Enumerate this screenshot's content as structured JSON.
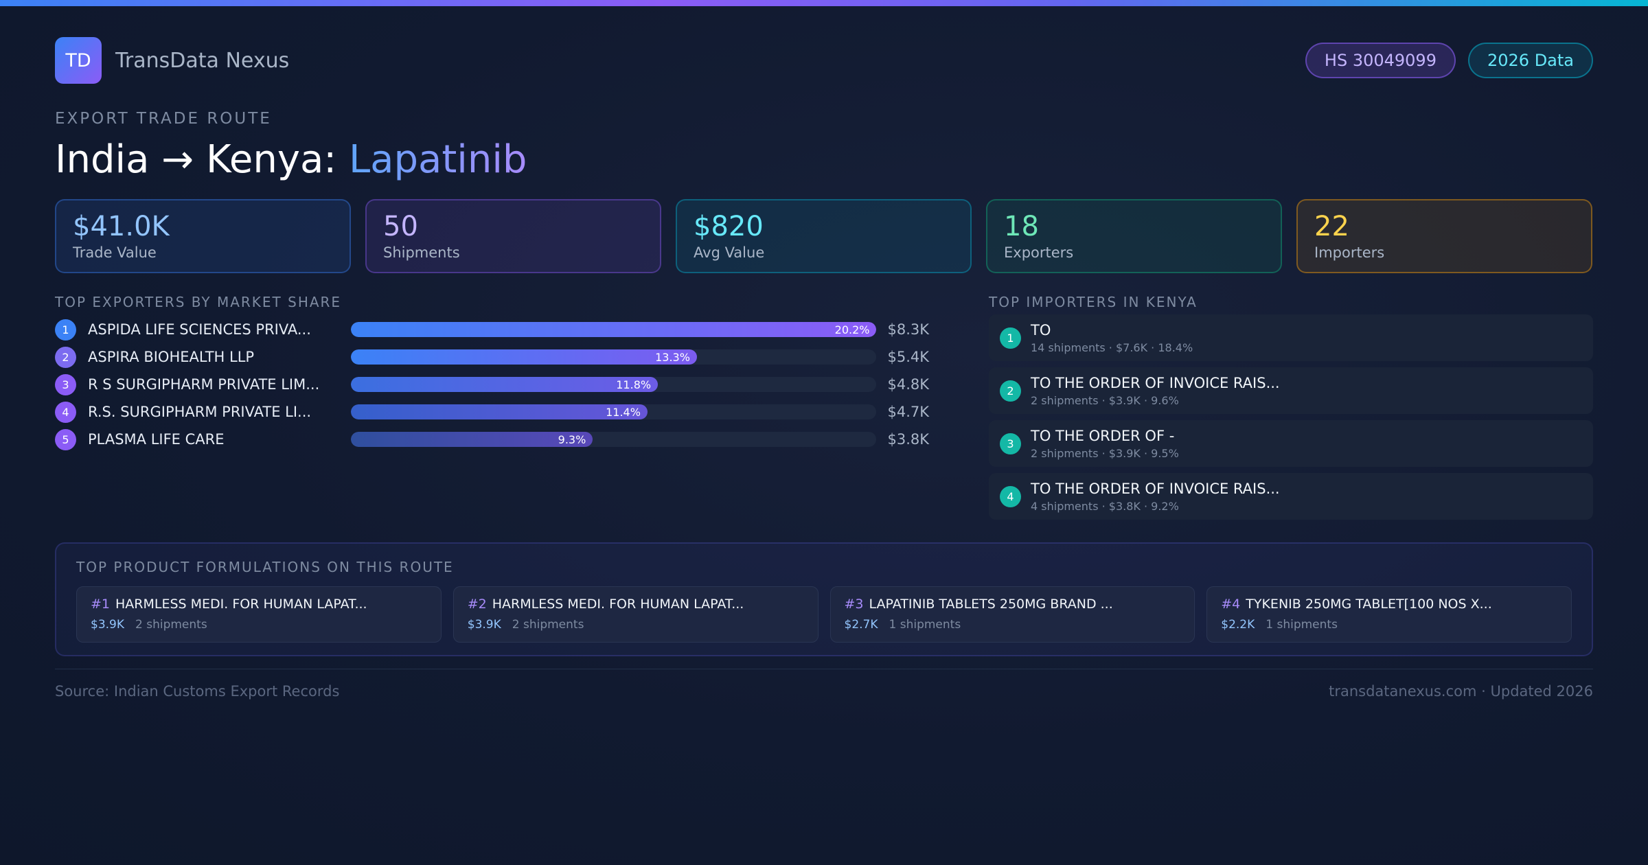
{
  "brand": {
    "logo_text": "TD",
    "name": "TransData Nexus"
  },
  "badges": {
    "hs_code": "HS 30049099",
    "data_year": "2026 Data"
  },
  "route": {
    "kicker": "EXPORT TRADE ROUTE",
    "title_prefix": "India → Kenya: ",
    "title_product": "Lapatinib"
  },
  "stats": [
    {
      "value": "$41.0K",
      "label": "Trade Value"
    },
    {
      "value": "50",
      "label": "Shipments"
    },
    {
      "value": "$820",
      "label": "Avg Value"
    },
    {
      "value": "18",
      "label": "Exporters"
    },
    {
      "value": "22",
      "label": "Importers"
    }
  ],
  "exporters": {
    "title": "TOP EXPORTERS BY MARKET SHARE",
    "items": [
      {
        "rank": "1",
        "name": "ASPIDA LIFE SCIENCES PRIVA...",
        "share": 20.2,
        "share_label": "20.2%",
        "value": "$8.3K",
        "rank_color": "#3b82f6"
      },
      {
        "rank": "2",
        "name": "ASPIRA BIOHEALTH LLP",
        "share": 13.3,
        "share_label": "13.3%",
        "value": "$5.4K",
        "rank_color": "#7c6cf0"
      },
      {
        "rank": "3",
        "name": "R S SURGIPHARM PRIVATE LIM...",
        "share": 11.8,
        "share_label": "11.8%",
        "value": "$4.8K",
        "rank_color": "#8b5cf6"
      },
      {
        "rank": "4",
        "name": "R.S. SURGIPHARM PRIVATE LI...",
        "share": 11.4,
        "share_label": "11.4%",
        "value": "$4.7K",
        "rank_color": "#8b5cf6"
      },
      {
        "rank": "5",
        "name": "PLASMA LIFE CARE",
        "share": 9.3,
        "share_label": "9.3%",
        "value": "$3.8K",
        "rank_color": "#8b5cf6"
      }
    ]
  },
  "importers": {
    "title": "TOP IMPORTERS IN KENYA",
    "items": [
      {
        "rank": "1",
        "name": "TO",
        "meta": "14 shipments · $7.6K · 18.4%"
      },
      {
        "rank": "2",
        "name": "TO THE ORDER OF INVOICE RAIS...",
        "meta": "2 shipments · $3.9K · 9.6%"
      },
      {
        "rank": "3",
        "name": "TO THE ORDER OF -",
        "meta": "2 shipments · $3.9K · 9.5%"
      },
      {
        "rank": "4",
        "name": "TO THE ORDER OF INVOICE RAIS...",
        "meta": "4 shipments · $3.8K · 9.2%"
      }
    ]
  },
  "products": {
    "title": "TOP PRODUCT FORMULATIONS ON THIS ROUTE",
    "items": [
      {
        "num": "#1",
        "name": "HARMLESS MEDI. FOR HUMAN LAPAT...",
        "value": "$3.9K",
        "shipments": "2 shipments"
      },
      {
        "num": "#2",
        "name": "HARMLESS MEDI. FOR HUMAN LAPAT...",
        "value": "$3.9K",
        "shipments": "2 shipments"
      },
      {
        "num": "#3",
        "name": "LAPATINIB TABLETS 250MG BRAND ...",
        "value": "$2.7K",
        "shipments": "1 shipments"
      },
      {
        "num": "#4",
        "name": "TYKENIB 250MG TABLET[100 NOS X...",
        "value": "$2.2K",
        "shipments": "1 shipments"
      }
    ]
  },
  "footer": {
    "source": "Source: Indian Customs Export Records",
    "site": "transdatanexus.com · Updated 2026"
  }
}
